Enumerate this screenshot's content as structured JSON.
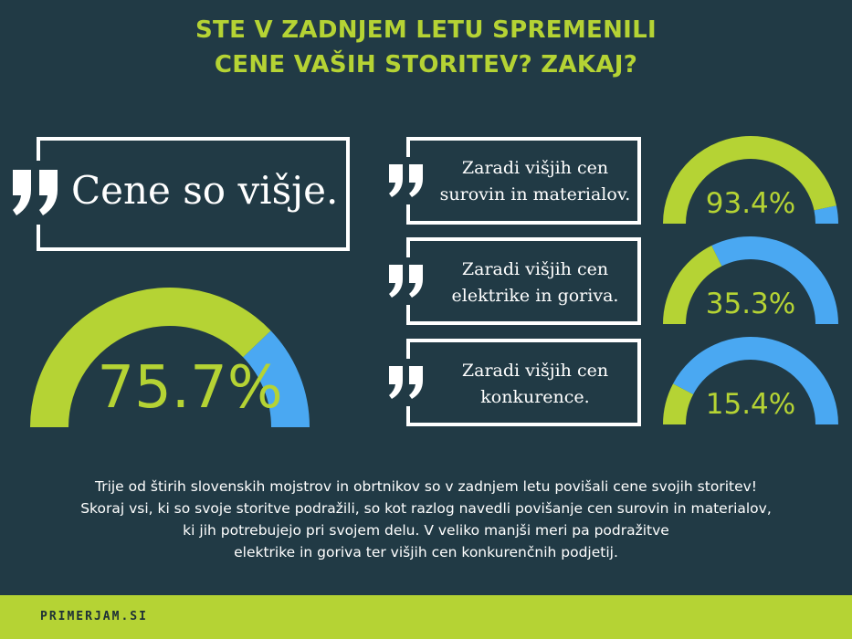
{
  "title": {
    "line1": "STE V ZADNJEM LETU SPREMENILI",
    "line2": "CENE VAŠIH STORITEV? ZAKAJ?"
  },
  "main_quote": {
    "text": "Cene so višje."
  },
  "reasons": [
    {
      "line1": "Zaradi višjih cen",
      "line2": "surovin in materialov."
    },
    {
      "line1": "Zaradi višjih cen",
      "line2": "elektrike in goriva."
    },
    {
      "line1": "Zaradi višjih cen",
      "line2": "konkurence."
    }
  ],
  "colors": {
    "background": "#213a45",
    "accent_green": "#b5d334",
    "accent_blue": "#4aa8f2",
    "text": "#ffffff"
  },
  "chart_data": [
    {
      "type": "gauge",
      "value": 75.7,
      "label": "75.7%",
      "max": 100,
      "fill_color": "#b5d334",
      "remainder_color": "#4aa8f2"
    },
    {
      "type": "gauge",
      "value": 93.4,
      "label": "93.4%",
      "max": 100,
      "fill_color": "#b5d334",
      "remainder_color": "#4aa8f2"
    },
    {
      "type": "gauge",
      "value": 35.3,
      "label": "35.3%",
      "max": 100,
      "fill_color": "#b5d334",
      "remainder_color": "#4aa8f2"
    },
    {
      "type": "gauge",
      "value": 15.4,
      "label": "15.4%",
      "max": 100,
      "fill_color": "#b5d334",
      "remainder_color": "#4aa8f2"
    }
  ],
  "description": {
    "line1": "Trije od štirih slovenskih mojstrov in obrtnikov so v zadnjem letu povišali cene svojih storitev!",
    "line2": "Skoraj vsi, ki so svoje storitve podražili, so kot razlog navedli povišanje cen surovin in materialov,",
    "line3": "ki jih potrebujejo pri svojem delu. V veliko manjši meri pa podražitve",
    "line4": "elektrike in goriva ter višjih cen konkurenčnih podjetij."
  },
  "footer": {
    "brand": "PRIMERJAM.SI"
  }
}
